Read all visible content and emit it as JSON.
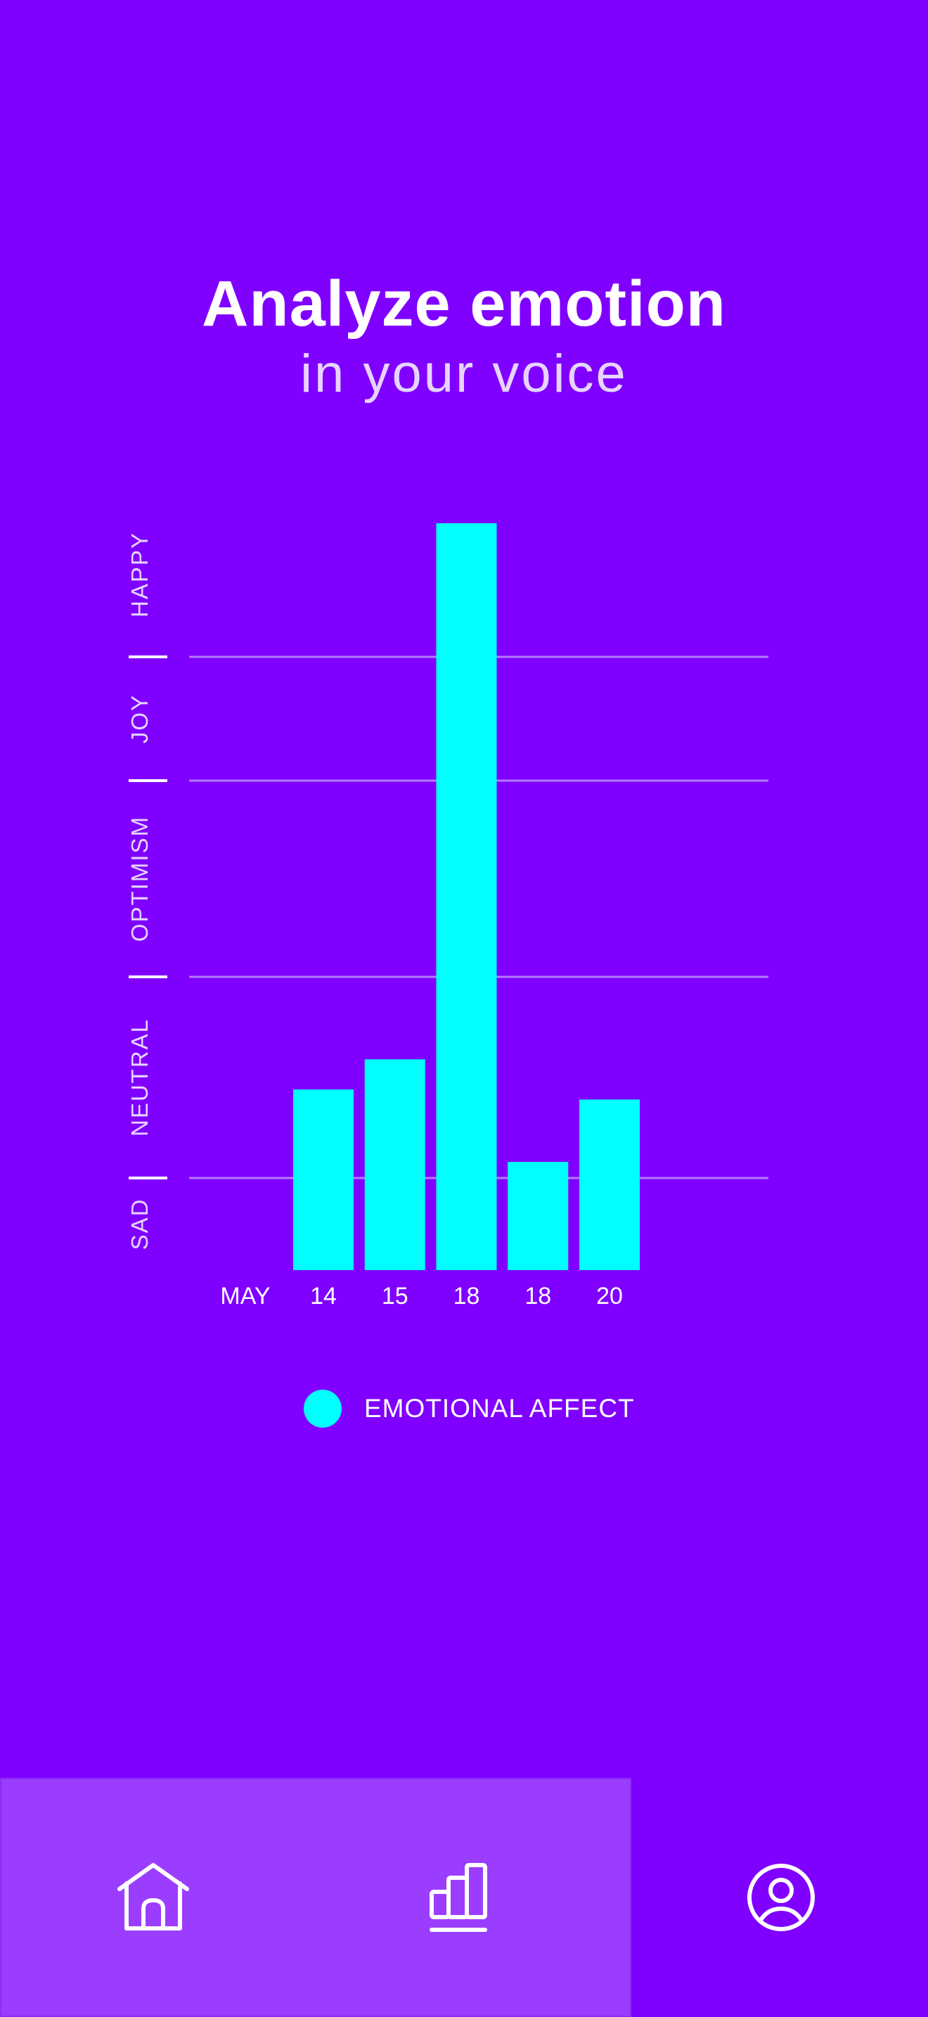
{
  "header": {
    "title": "Analyze emotion",
    "subtitle": "in your voice"
  },
  "chart_data": {
    "type": "bar",
    "title": "Analyze emotion in your voice",
    "x_prefix_label": "MAY",
    "categories": [
      "14",
      "15",
      "18",
      "18",
      "20"
    ],
    "values": [
      1.44,
      1.59,
      5.0,
      1.08,
      1.39
    ],
    "y_categories": [
      "SAD",
      "NEUTRAL",
      "OPTIMISM",
      "JOY",
      "HAPPY"
    ],
    "ylim": [
      0,
      5
    ],
    "grid": true,
    "legend": {
      "label": "EMOTIONAL AFFECT",
      "placement": "bottom-center"
    },
    "bar_color": "#00ffff"
  },
  "nav": {
    "items": [
      "home",
      "stats",
      "profile"
    ],
    "active": "stats"
  },
  "colors": {
    "background": "#8000ff",
    "nav_highlight": "#9b3dff",
    "bar": "#00ffff"
  }
}
